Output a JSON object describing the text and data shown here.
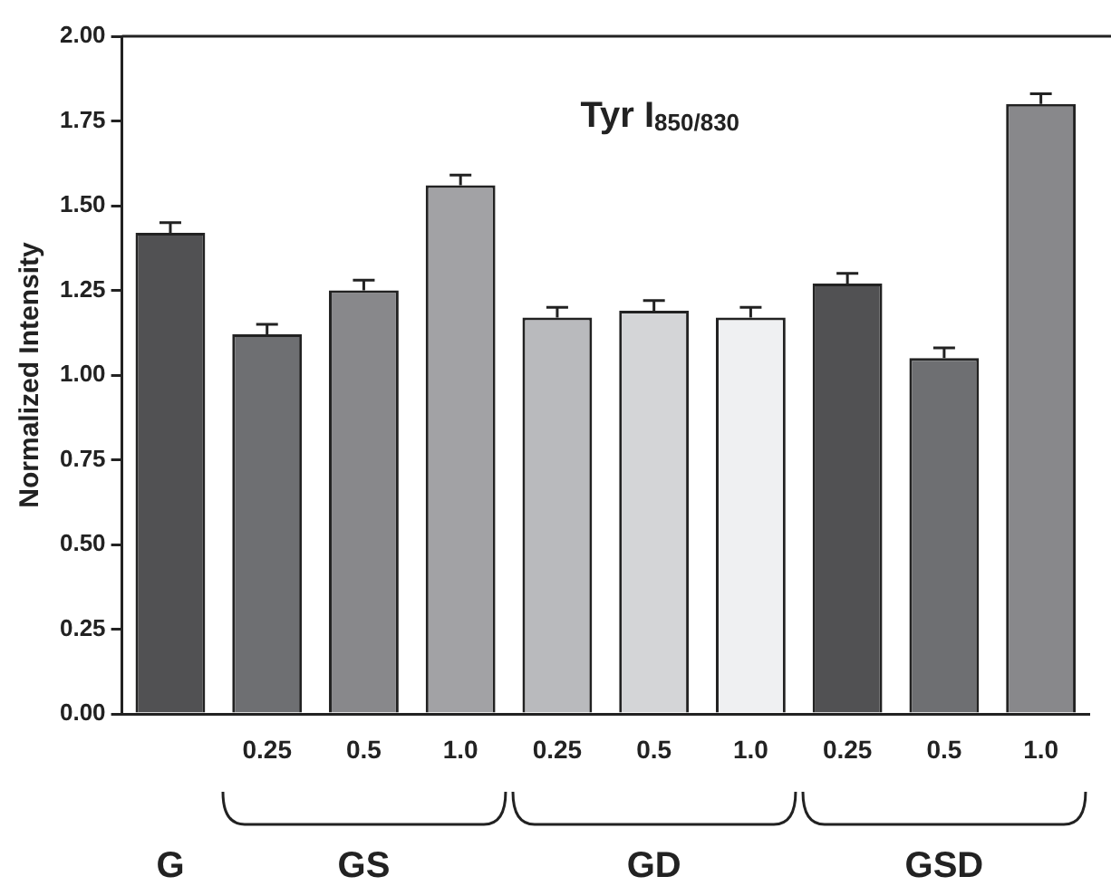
{
  "chart_data": {
    "type": "bar",
    "title": "Tyr I$_{850/830}$",
    "ylabel": "Normalized Intensity",
    "categories": [
      null,
      "0.25",
      "0.5",
      "1.0",
      "0.25",
      "0.5",
      "1.0",
      "0.25",
      "0.5",
      "1.0"
    ],
    "values": [
      1.42,
      1.12,
      1.25,
      1.56,
      1.17,
      1.19,
      1.17,
      1.27,
      1.05,
      1.8
    ],
    "colors": [
      "#515153",
      "#6e6f72",
      "#88888b",
      "#a2a2a5",
      "#b9babd",
      "#d4d5d7",
      "#eff0f2",
      "#515153",
      "#6e6f72",
      "#88888b"
    ],
    "errors": [
      0.03,
      0.03,
      0.03,
      0.03,
      0.03,
      0.03,
      0.03,
      0.03,
      0.03,
      0.03
    ],
    "ylim": [
      0,
      2
    ],
    "yticks": [
      {
        "value": 0,
        "label": "0.00"
      },
      {
        "value": 0.25,
        "label": "0.25"
      },
      {
        "value": 0.5,
        "label": "0.50"
      },
      {
        "value": 0.75,
        "label": "0.75"
      },
      {
        "value": 1,
        "label": "1.00"
      },
      {
        "value": 1.25,
        "label": "1.25"
      },
      {
        "value": 1.5,
        "label": "1.50"
      },
      {
        "value": 1.75,
        "label": "1.75"
      },
      {
        "value": 2,
        "label": "2.00"
      }
    ],
    "grid": false,
    "legend": false,
    "annotations": [
      "G",
      "GS",
      "GD",
      "GSD"
    ]
  }
}
